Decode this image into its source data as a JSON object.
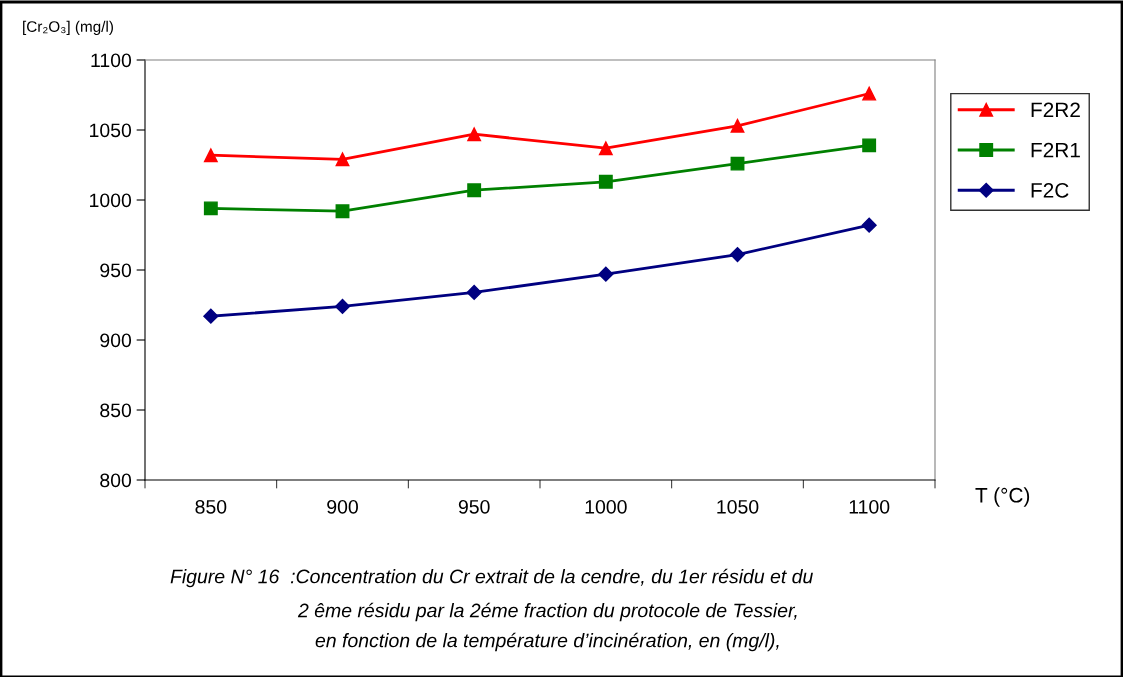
{
  "chart_data": {
    "type": "line",
    "ylabel": "[Cr₂O₃] (mg/l)",
    "xlabel": "T (°C)",
    "categories": [
      "850",
      "900",
      "950",
      "1000",
      "1050",
      "1100"
    ],
    "series": [
      {
        "name": "F2R2",
        "color": "#ff0000",
        "marker": "triangle",
        "values": [
          1032,
          1029,
          1047,
          1037,
          1053,
          1076
        ]
      },
      {
        "name": "F2R1",
        "color": "#008000",
        "marker": "square",
        "values": [
          994,
          992,
          1007,
          1013,
          1026,
          1039
        ]
      },
      {
        "name": "F2C",
        "color": "#000080",
        "marker": "diamond",
        "values": [
          917,
          924,
          934,
          947,
          961,
          982
        ]
      }
    ],
    "ylim": [
      800,
      1100
    ],
    "yticks": [
      800,
      850,
      900,
      950,
      1000,
      1050,
      1100
    ],
    "grid": false,
    "legend": "right",
    "annotations": [
      "Figure N° 16  :Concentration du Cr extrait de la cendre, du 1er résidu et du",
      "2 ême résidu par la 2éme fraction du protocole de Tessier,",
      "en fonction de la température d’incinération, en (mg/l),"
    ]
  }
}
